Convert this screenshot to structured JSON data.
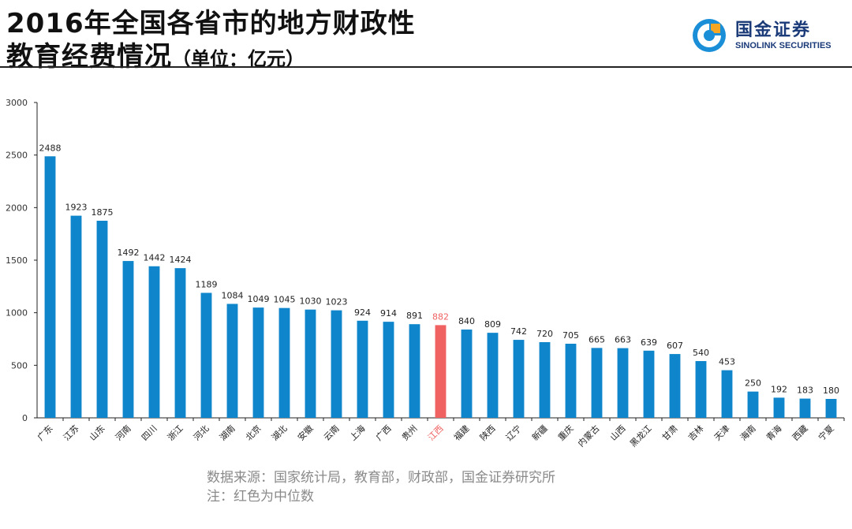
{
  "header": {
    "title_line1": "2016年全国各省市的地方财政性",
    "title_line2": "教育经费情况",
    "unit": "（单位：亿元）"
  },
  "logo": {
    "name_cn": "国金证券",
    "name_en": "SINOLINK SECURITIES"
  },
  "chart_data": {
    "type": "bar",
    "categories": [
      "广东",
      "江苏",
      "山东",
      "河南",
      "四川",
      "浙江",
      "河北",
      "湖南",
      "北京",
      "湖北",
      "安徽",
      "云南",
      "上海",
      "广西",
      "贵州",
      "江西",
      "福建",
      "陕西",
      "辽宁",
      "新疆",
      "重庆",
      "内蒙古",
      "山西",
      "黑龙江",
      "甘肃",
      "吉林",
      "天津",
      "海南",
      "青海",
      "西藏",
      "宁夏"
    ],
    "values": [
      2488,
      1923,
      1875,
      1492,
      1442,
      1424,
      1189,
      1084,
      1049,
      1045,
      1030,
      1023,
      924,
      914,
      891,
      882,
      840,
      809,
      742,
      720,
      705,
      665,
      663,
      639,
      607,
      540,
      453,
      250,
      192,
      183,
      180
    ],
    "highlight_category": "江西",
    "ylim": [
      0,
      3000
    ],
    "yticks": [
      0,
      500,
      1000,
      1500,
      2000,
      2500,
      3000
    ],
    "grid": false,
    "colors": {
      "bar": "#0f86cc",
      "highlight": "#f06262",
      "label": "#222222",
      "axis": "#222222"
    }
  },
  "footer": {
    "source": "数据来源：国家统计局，教育部，财政部，国金证券研究所",
    "note": "注：红色为中位数"
  }
}
